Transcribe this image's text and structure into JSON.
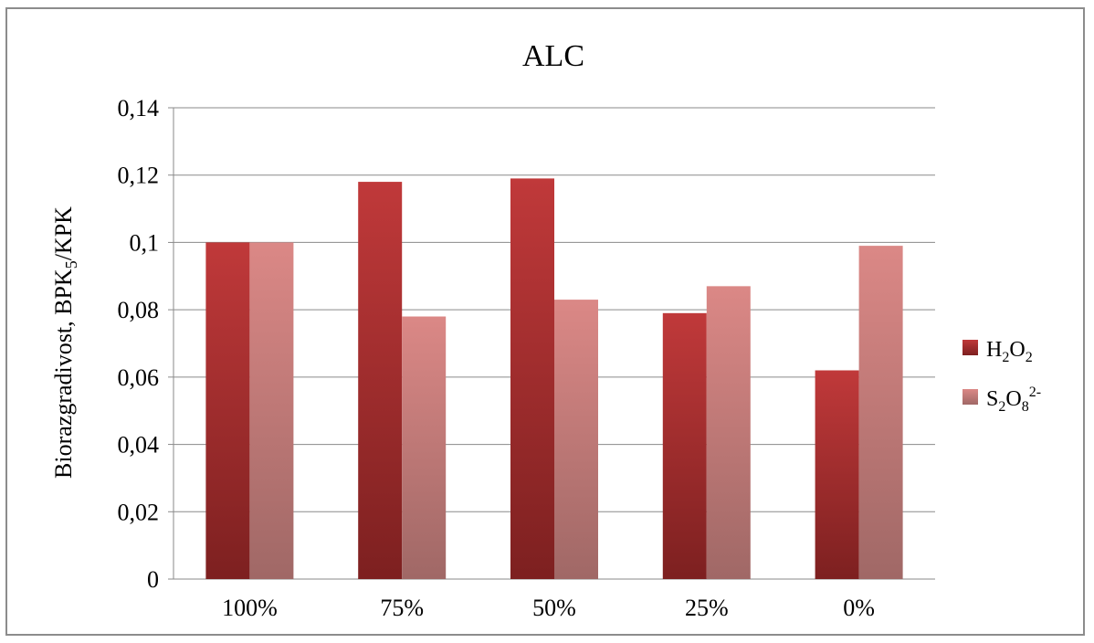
{
  "chart_data": {
    "type": "bar",
    "title": "ALC",
    "ylabel": {
      "main": "Biorazgradivost, BPK",
      "sub": "5",
      "suffix": "/KPK"
    },
    "xlabel": "",
    "categories": [
      "100%",
      "75%",
      "50%",
      "25%",
      "0%"
    ],
    "ylim": [
      0,
      0.14
    ],
    "yticks": [
      0,
      0.02,
      0.04,
      0.06,
      0.08,
      0.1,
      0.12,
      0.14
    ],
    "ytick_labels": [
      "0",
      "0,02",
      "0,04",
      "0,06",
      "0,08",
      "0,1",
      "0,12",
      "0,14"
    ],
    "grid": true,
    "legend_position": "right",
    "series": [
      {
        "name": "H2O2",
        "label_parts": [
          [
            "H",
            ""
          ],
          [
            "2",
            "sub"
          ],
          [
            "O",
            ""
          ],
          [
            "2",
            "sub"
          ]
        ],
        "color_top": "#c0393a",
        "color_bottom": "#7d2020",
        "values": [
          0.1,
          0.118,
          0.119,
          0.079,
          0.062
        ]
      },
      {
        "name": "S2O8 2-",
        "label_parts": [
          [
            "S",
            ""
          ],
          [
            "2",
            "sub"
          ],
          [
            "O",
            ""
          ],
          [
            "8",
            "sub"
          ],
          [
            "2-",
            "sup"
          ]
        ],
        "color_top": "#db8886",
        "color_bottom": "#a06866",
        "values": [
          0.1,
          0.078,
          0.083,
          0.087,
          0.099
        ]
      }
    ]
  }
}
